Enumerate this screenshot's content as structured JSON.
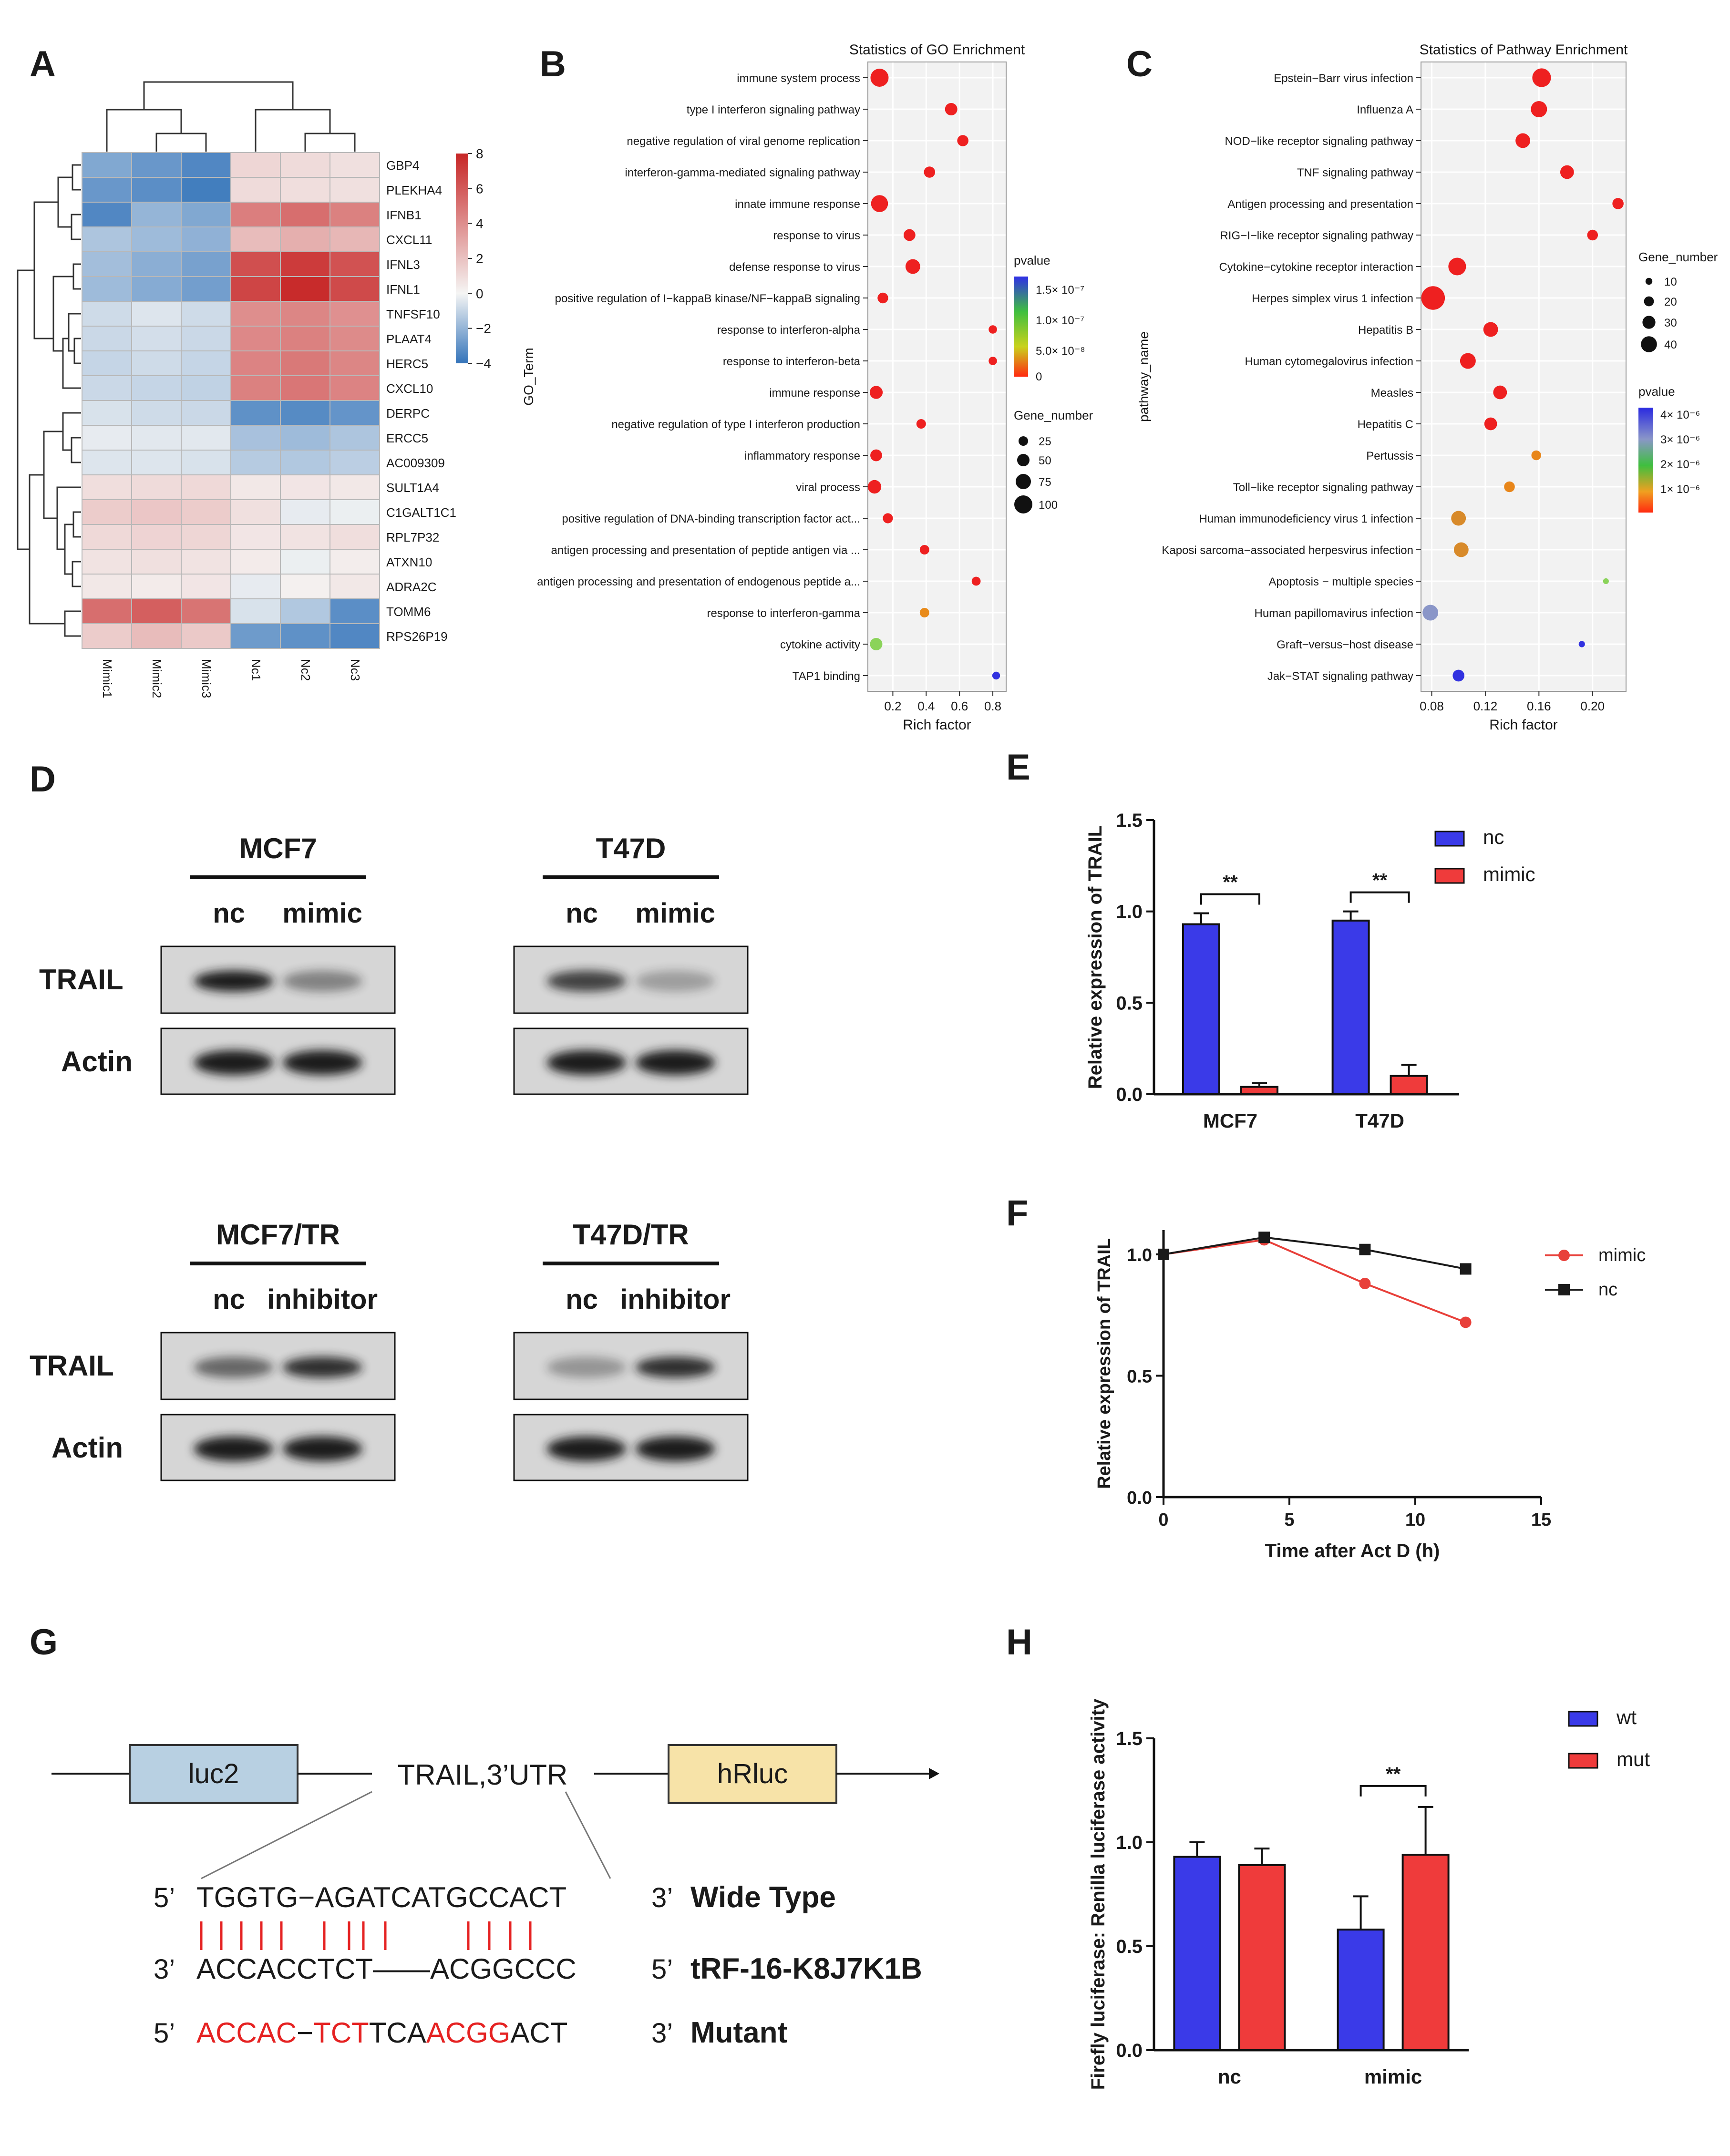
{
  "panel_letters": {
    "a": "A",
    "b": "B",
    "c": "C",
    "d": "D",
    "e": "E",
    "f": "F",
    "g": "G",
    "h": "H"
  },
  "heatmap": {
    "genes": [
      "GBP4",
      "PLEKHA4",
      "IFNB1",
      "CXCL11",
      "IFNL3",
      "IFNL1",
      "TNFSF10",
      "PLAAT4",
      "HERC5",
      "CXCL10",
      "DERPC",
      "ERCC5",
      "AC009309",
      "SULT1A4",
      "C1GALT1C1",
      "RPL7P32",
      "ATXN10",
      "ADRA2C",
      "TOMM6",
      "RPS26P19"
    ],
    "samples": [
      "Mimic1",
      "Mimic2",
      "Mimic3",
      "Nc1",
      "Nc2",
      "Nc3"
    ],
    "values": [
      [
        -2.4,
        -2.9,
        -3.4,
        1.2,
        1.0,
        0.8
      ],
      [
        -2.9,
        -3.2,
        -3.7,
        1.0,
        0.9,
        0.8
      ],
      [
        -3.4,
        -2.0,
        -2.4,
        4.6,
        5.2,
        4.5
      ],
      [
        -1.5,
        -1.8,
        -2.1,
        2.2,
        2.7,
        2.4
      ],
      [
        -1.7,
        -2.2,
        -2.6,
        6.4,
        7.2,
        6.3
      ],
      [
        -1.8,
        -2.3,
        -2.7,
        6.8,
        7.8,
        6.6
      ],
      [
        -0.8,
        -0.5,
        -0.8,
        4.0,
        4.3,
        3.9
      ],
      [
        -0.9,
        -0.7,
        -0.9,
        4.2,
        4.5,
        4.1
      ],
      [
        -1.0,
        -0.8,
        -1.0,
        4.4,
        4.8,
        4.3
      ],
      [
        -0.9,
        -1.0,
        -1.1,
        4.5,
        4.9,
        4.4
      ],
      [
        -0.6,
        -0.8,
        -0.9,
        -3.1,
        -3.3,
        -3.0
      ],
      [
        -0.3,
        -0.4,
        -0.4,
        -1.6,
        -1.8,
        -1.5
      ],
      [
        -0.5,
        -0.5,
        -0.6,
        -1.3,
        -1.4,
        -1.2
      ],
      [
        0.9,
        1.0,
        1.1,
        0.5,
        0.6,
        0.5
      ],
      [
        1.6,
        1.8,
        1.6,
        0.8,
        -0.3,
        -0.2
      ],
      [
        1.1,
        1.3,
        1.2,
        0.6,
        0.7,
        0.9
      ],
      [
        0.7,
        0.8,
        0.7,
        0.4,
        -0.2,
        0.3
      ],
      [
        0.5,
        0.4,
        0.6,
        -0.3,
        0.2,
        0.5
      ],
      [
        5.2,
        5.8,
        5.0,
        -0.6,
        -1.4,
        -3.2
      ],
      [
        1.6,
        2.2,
        1.7,
        -2.8,
        -3.1,
        -3.4
      ]
    ],
    "legend_ticks": [
      "8",
      "6",
      "4",
      "2",
      "0",
      "−2",
      "−4"
    ]
  },
  "go": {
    "title": "Statistics of GO Enrichment",
    "ylabel": "GO_Term",
    "xlabel": "Rich factor",
    "xticks": [
      "0.2",
      "0.4",
      "0.6",
      "0.8"
    ],
    "terms": [
      {
        "term": "immune system process",
        "rich": 0.12,
        "genes": 100,
        "p": 0.0
      },
      {
        "term": "type I interferon signaling pathway",
        "rich": 0.55,
        "genes": 50,
        "p": 0.0
      },
      {
        "term": "negative regulation of viral genome replication",
        "rich": 0.62,
        "genes": 40,
        "p": 0.0
      },
      {
        "term": "interferon-gamma-mediated signaling pathway",
        "rich": 0.42,
        "genes": 40,
        "p": 0.0
      },
      {
        "term": "innate immune response",
        "rich": 0.12,
        "genes": 90,
        "p": 0.0
      },
      {
        "term": "response to virus",
        "rich": 0.3,
        "genes": 45,
        "p": 0.0
      },
      {
        "term": "defense response to virus",
        "rich": 0.32,
        "genes": 70,
        "p": 0.0
      },
      {
        "term": "positive regulation of I−kappaB kinase/NF−kappaB signaling",
        "rich": 0.14,
        "genes": 35,
        "p": 0.0
      },
      {
        "term": "response to interferon-alpha",
        "rich": 0.8,
        "genes": 15,
        "p": 0.0
      },
      {
        "term": "response to interferon-beta",
        "rich": 0.8,
        "genes": 15,
        "p": 0.0
      },
      {
        "term": "immune response",
        "rich": 0.1,
        "genes": 55,
        "p": 0.0
      },
      {
        "term": "negative regulation of type I interferon production",
        "rich": 0.37,
        "genes": 25,
        "p": 0.0
      },
      {
        "term": "inflammatory response",
        "rich": 0.1,
        "genes": 45,
        "p": 0.0
      },
      {
        "term": "viral process",
        "rich": 0.09,
        "genes": 60,
        "p": 0.0
      },
      {
        "term": "positive regulation of DNA-binding transcription factor act...",
        "rich": 0.17,
        "genes": 30,
        "p": 0.0
      },
      {
        "term": "antigen processing and presentation of peptide antigen via ...",
        "rich": 0.39,
        "genes": 25,
        "p": 0.0
      },
      {
        "term": "antigen processing and presentation of endogenous peptide a...",
        "rich": 0.7,
        "genes": 20,
        "p": 0.0
      },
      {
        "term": "response to interferon-gamma",
        "rich": 0.39,
        "genes": 25,
        "p": 4e-08
      },
      {
        "term": "cytokine activity",
        "rich": 0.1,
        "genes": 50,
        "p": 8e-08
      },
      {
        "term": "TAP1 binding",
        "rich": 0.82,
        "genes": 10,
        "p": 1.6e-07
      }
    ],
    "pvalue_legend": {
      "title": "pvalue",
      "labels": [
        "1.5× 10⁻⁷",
        "1.0× 10⁻⁷",
        "5.0× 10⁻⁸",
        "0"
      ]
    },
    "gene_legend": {
      "title": "Gene_number",
      "labels": [
        "25",
        "50",
        "75",
        "100"
      ]
    }
  },
  "pathway": {
    "title": "Statistics of Pathway Enrichment",
    "ylabel": "pathway_name",
    "xlabel": "Rich factor",
    "xticks": [
      "0.08",
      "0.12",
      "0.16",
      "0.20"
    ],
    "terms": [
      {
        "term": "Epstein−Barr virus infection",
        "rich": 0.162,
        "genes": 30,
        "p": 0.0
      },
      {
        "term": "Influenza A",
        "rich": 0.16,
        "genes": 25,
        "p": 0.0
      },
      {
        "term": "NOD−like receptor signaling pathway",
        "rich": 0.148,
        "genes": 22,
        "p": 0.0
      },
      {
        "term": "TNF signaling pathway",
        "rich": 0.181,
        "genes": 20,
        "p": 0.0
      },
      {
        "term": "Antigen processing and presentation",
        "rich": 0.219,
        "genes": 15,
        "p": 0.0
      },
      {
        "term": "RIG−I−like receptor signaling pathway",
        "rich": 0.2,
        "genes": 14,
        "p": 0.0
      },
      {
        "term": "Cytokine−cytokine receptor interaction",
        "rich": 0.099,
        "genes": 28,
        "p": 0.0
      },
      {
        "term": "Herpes simplex virus 1 infection",
        "rich": 0.081,
        "genes": 40,
        "p": 0.0
      },
      {
        "term": "Hepatitis B",
        "rich": 0.124,
        "genes": 22,
        "p": 0.0
      },
      {
        "term": "Human cytomegalovirus infection",
        "rich": 0.107,
        "genes": 24,
        "p": 0.0
      },
      {
        "term": "Measles",
        "rich": 0.131,
        "genes": 20,
        "p": 0.0
      },
      {
        "term": "Hepatitis C",
        "rich": 0.124,
        "genes": 18,
        "p": 0.0
      },
      {
        "term": "Pertussis",
        "rich": 0.158,
        "genes": 12,
        "p": 5e-07
      },
      {
        "term": "Toll−like receptor signaling pathway",
        "rich": 0.138,
        "genes": 14,
        "p": 8e-07
      },
      {
        "term": "Human immunodeficiency virus 1 infection",
        "rich": 0.1,
        "genes": 22,
        "p": 1.2e-06
      },
      {
        "term": "Kaposi sarcoma−associated herpesvirus infection",
        "rich": 0.102,
        "genes": 22,
        "p": 1.4e-06
      },
      {
        "term": "Apoptosis − multiple species",
        "rich": 0.21,
        "genes": 4,
        "p": 2e-06
      },
      {
        "term": "Human papillomavirus infection",
        "rich": 0.079,
        "genes": 24,
        "p": 3.2e-06
      },
      {
        "term": "Graft−versus−host disease",
        "rich": 0.192,
        "genes": 5,
        "p": 3.8e-06
      },
      {
        "term": "Jak−STAT signaling pathway",
        "rich": 0.1,
        "genes": 16,
        "p": 4.3e-06
      }
    ],
    "gene_legend": {
      "title": "Gene_number",
      "labels": [
        "10",
        "20",
        "30",
        "40"
      ]
    },
    "pvalue_legend": {
      "title": "pvalue",
      "labels": [
        "4× 10⁻⁶",
        "3× 10⁻⁶",
        "2× 10⁻⁶",
        "1× 10⁻⁶"
      ]
    }
  },
  "western": {
    "top": [
      {
        "cell": "MCF7",
        "lanes": [
          "nc",
          "mimic"
        ],
        "trail": [
          1.0,
          0.45
        ]
      },
      {
        "cell": "T47D",
        "lanes": [
          "nc",
          "mimic"
        ],
        "trail": [
          0.8,
          0.3
        ]
      }
    ],
    "bottom": [
      {
        "cell": "MCF7/TR",
        "lanes": [
          "nc",
          "inhibitor"
        ],
        "trail": [
          0.6,
          0.9
        ]
      },
      {
        "cell": "T47D/TR",
        "lanes": [
          "nc",
          "inhibitor"
        ],
        "trail": [
          0.35,
          0.9
        ]
      }
    ],
    "row_labels": [
      "TRAIL",
      "Actin"
    ]
  },
  "chart_data": [
    {
      "panel": "E",
      "type": "bar",
      "categories": [
        "MCF7",
        "T47D"
      ],
      "series": [
        {
          "name": "nc",
          "values": [
            0.93,
            0.95
          ],
          "errors": [
            0.06,
            0.05
          ],
          "color": "#3a3ae8"
        },
        {
          "name": "mimic",
          "values": [
            0.04,
            0.1
          ],
          "errors": [
            0.02,
            0.06
          ],
          "color": "#ef3b3b"
        }
      ],
      "ylabel": "Relative  expression of TRAIL",
      "ylim": [
        0,
        1.5
      ],
      "yticks": [
        "0.0",
        "0.5",
        "1.0",
        "1.5"
      ],
      "significance": [
        "**",
        "**"
      ]
    },
    {
      "panel": "F",
      "type": "line",
      "xlabel": "Time after Act D  (h)",
      "ylabel": "Relative  expression of TRAIL",
      "xlim": [
        0,
        15
      ],
      "ylim": [
        0,
        1.1
      ],
      "xticks": [
        "0",
        "5",
        "10",
        "15"
      ],
      "yticks": [
        "0.0",
        "0.5",
        "1.0"
      ],
      "series": [
        {
          "name": "mimic",
          "x": [
            0,
            4,
            8,
            12
          ],
          "values": [
            1.0,
            1.06,
            0.88,
            0.72
          ],
          "color": "#e8403a",
          "marker": "circle"
        },
        {
          "name": "nc",
          "x": [
            0,
            4,
            8,
            12
          ],
          "values": [
            1.0,
            1.07,
            1.02,
            0.94
          ],
          "color": "#1a1a1a",
          "marker": "square"
        }
      ]
    },
    {
      "panel": "H",
      "type": "bar",
      "categories": [
        "nc",
        "mimic"
      ],
      "series": [
        {
          "name": "wt",
          "values": [
            0.93,
            0.58
          ],
          "errors": [
            0.07,
            0.16
          ],
          "color": "#3a3ae8"
        },
        {
          "name": "mut",
          "values": [
            0.89,
            0.94
          ],
          "errors": [
            0.08,
            0.23
          ],
          "color": "#ef3b3b"
        }
      ],
      "ylabel": "Firefly luciferase: Renilla luciferase activity",
      "ylim": [
        0,
        1.5
      ],
      "yticks": [
        "0.0",
        "0.5",
        "1.0",
        "1.5"
      ],
      "significance": [
        "",
        "**"
      ]
    }
  ],
  "construct": {
    "luc2": "luc2",
    "utr": "TRAIL,3’UTR",
    "hrluc": "hRluc",
    "rows": [
      {
        "left": "5’",
        "seq": "TGGTG−AGATCATGCCACT",
        "right": "3’",
        "label": "Wide Type"
      },
      {
        "left": "3’",
        "seq": "ACCACCTCT——ACGGCCC",
        "right": "5’",
        "label": "tRF-16-K8J7K1B"
      },
      {
        "left": "5’",
        "seq": "ACCAC−TCTTCAACGGACT",
        "right": "3’",
        "label": "Mutant"
      }
    ],
    "mutant_parts": [
      {
        "t": "ACCAC",
        "red": true
      },
      {
        "t": "−",
        "red": false
      },
      {
        "t": "TCT",
        "red": true
      },
      {
        "t": "TCA",
        "red": false
      },
      {
        "t": "ACGG",
        "red": true
      },
      {
        "t": "ACT",
        "red": false
      }
    ]
  }
}
